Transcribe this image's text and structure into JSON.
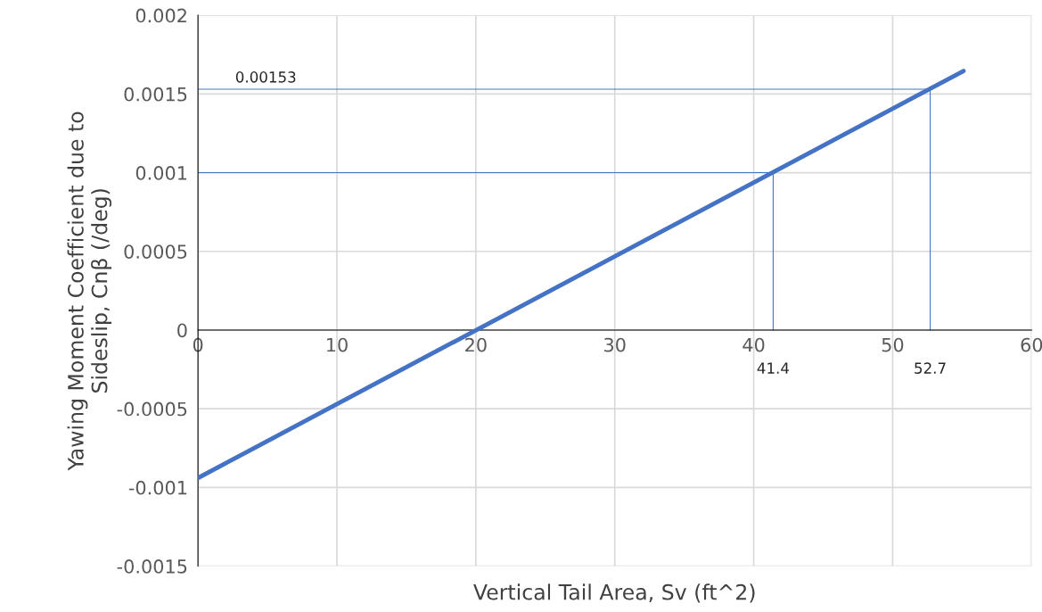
{
  "chart_data": {
    "type": "line",
    "xlabel": "Vertical Tail Area, Sv (ft^2)",
    "ylabel": "Yawing Moment Coefficient due to\nSideslip, Cnβ (/deg)",
    "series": [
      {
        "color": "#4472c4",
        "x": [
          0,
          55.1
        ],
        "values": [
          -0.00094,
          0.001646
        ]
      },
      {
        "type": "line",
        "color": "#4472c4",
        "x": [
          0,
          52.7,
          52.7
        ],
        "values": [
          0.00153,
          0.00153,
          0
        ]
      },
      {
        "type": "line",
        "color": "#4472c4",
        "x": [
          0,
          41.4,
          41.4
        ],
        "values": [
          0.001,
          0.001,
          0
        ]
      }
    ],
    "annotations": [
      {
        "text": "0.00153",
        "x": 0,
        "y": 0.00153
      },
      {
        "text": "41.4",
        "x": 41.4,
        "y": 0
      },
      {
        "text": "52.7",
        "x": 52.7,
        "y": 0
      }
    ],
    "xlim": [
      0,
      60
    ],
    "xticks": [
      0,
      10,
      20,
      30,
      40,
      50,
      60
    ],
    "ylim": [
      -0.0015,
      0.002
    ],
    "yticks": [
      -0.0015,
      -0.001,
      -0.0005,
      0,
      0.0005,
      0.001,
      0.0015,
      0.002
    ],
    "grid": true,
    "legend": false
  }
}
